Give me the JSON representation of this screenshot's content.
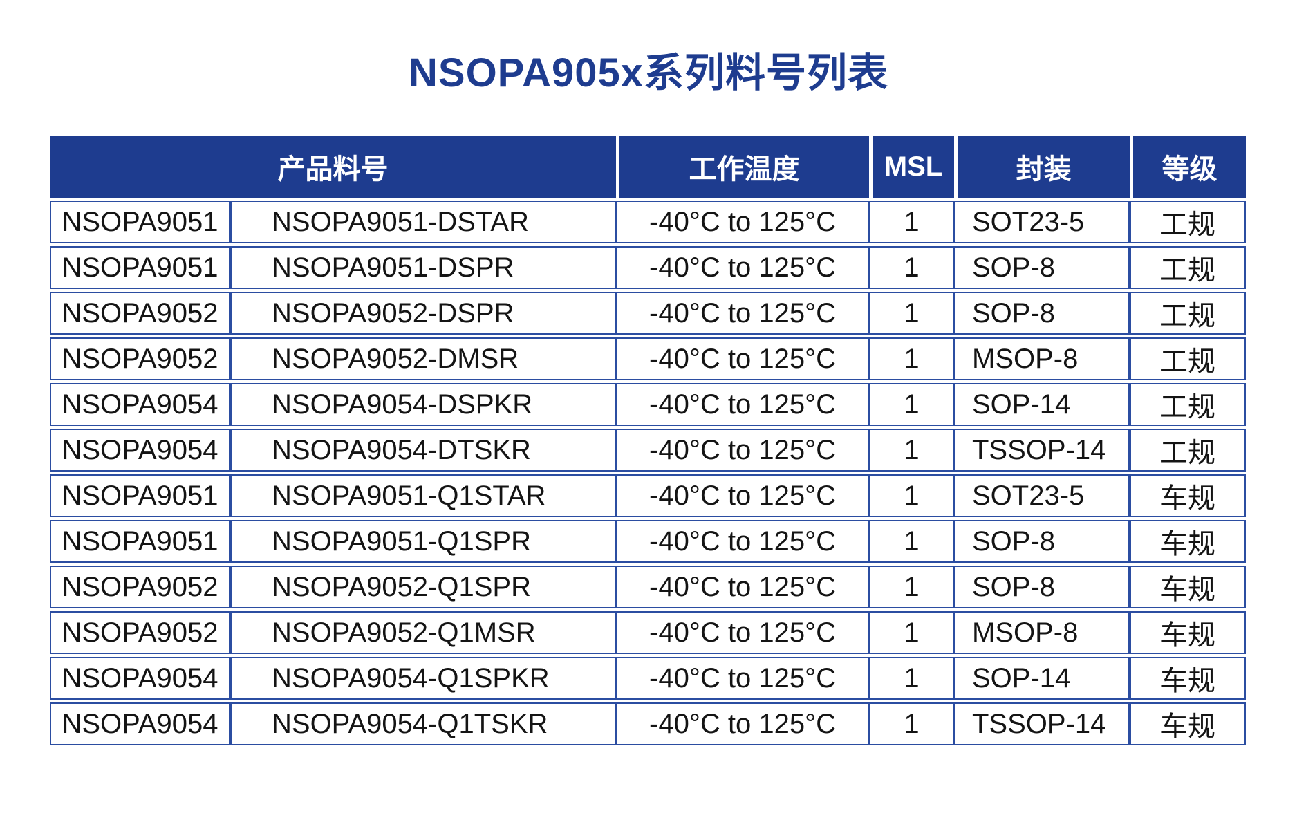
{
  "title": "NSOPA905x系列料号列表",
  "colors": {
    "navy_header": "#1e3c8f",
    "cell_border": "#2b4da1",
    "header_text": "#ffffff",
    "body_text": "#141414"
  },
  "table": {
    "headers": {
      "product": "产品料号",
      "temperature": "工作温度",
      "msl": "MSL",
      "package": "封装",
      "grade": "等级"
    },
    "rows": [
      {
        "series": "NSOPA9051",
        "part": "NSOPA9051-DSTAR",
        "temp": "-40°C to 125°C",
        "msl": "1",
        "package": "SOT23-5",
        "grade": "工规"
      },
      {
        "series": "NSOPA9051",
        "part": "NSOPA9051-DSPR",
        "temp": "-40°C to 125°C",
        "msl": "1",
        "package": "SOP-8",
        "grade": "工规"
      },
      {
        "series": "NSOPA9052",
        "part": "NSOPA9052-DSPR",
        "temp": "-40°C to 125°C",
        "msl": "1",
        "package": "SOP-8",
        "grade": "工规"
      },
      {
        "series": "NSOPA9052",
        "part": "NSOPA9052-DMSR",
        "temp": "-40°C to 125°C",
        "msl": "1",
        "package": "MSOP-8",
        "grade": "工规"
      },
      {
        "series": "NSOPA9054",
        "part": "NSOPA9054-DSPKR",
        "temp": "-40°C to 125°C",
        "msl": "1",
        "package": "SOP-14",
        "grade": "工规"
      },
      {
        "series": "NSOPA9054",
        "part": "NSOPA9054-DTSKR",
        "temp": "-40°C to 125°C",
        "msl": "1",
        "package": "TSSOP-14",
        "grade": "工规"
      },
      {
        "series": "NSOPA9051",
        "part": "NSOPA9051-Q1STAR",
        "temp": "-40°C to 125°C",
        "msl": "1",
        "package": "SOT23-5",
        "grade": "车规"
      },
      {
        "series": "NSOPA9051",
        "part": "NSOPA9051-Q1SPR",
        "temp": "-40°C to 125°C",
        "msl": "1",
        "package": "SOP-8",
        "grade": "车规"
      },
      {
        "series": "NSOPA9052",
        "part": "NSOPA9052-Q1SPR",
        "temp": "-40°C to 125°C",
        "msl": "1",
        "package": "SOP-8",
        "grade": "车规"
      },
      {
        "series": "NSOPA9052",
        "part": "NSOPA9052-Q1MSR",
        "temp": "-40°C to 125°C",
        "msl": "1",
        "package": "MSOP-8",
        "grade": "车规"
      },
      {
        "series": "NSOPA9054",
        "part": "NSOPA9054-Q1SPKR",
        "temp": "-40°C to 125°C",
        "msl": "1",
        "package": "SOP-14",
        "grade": "车规"
      },
      {
        "series": "NSOPA9054",
        "part": "NSOPA9054-Q1TSKR",
        "temp": "-40°C to 125°C",
        "msl": "1",
        "package": "TSSOP-14",
        "grade": "车规"
      }
    ]
  }
}
